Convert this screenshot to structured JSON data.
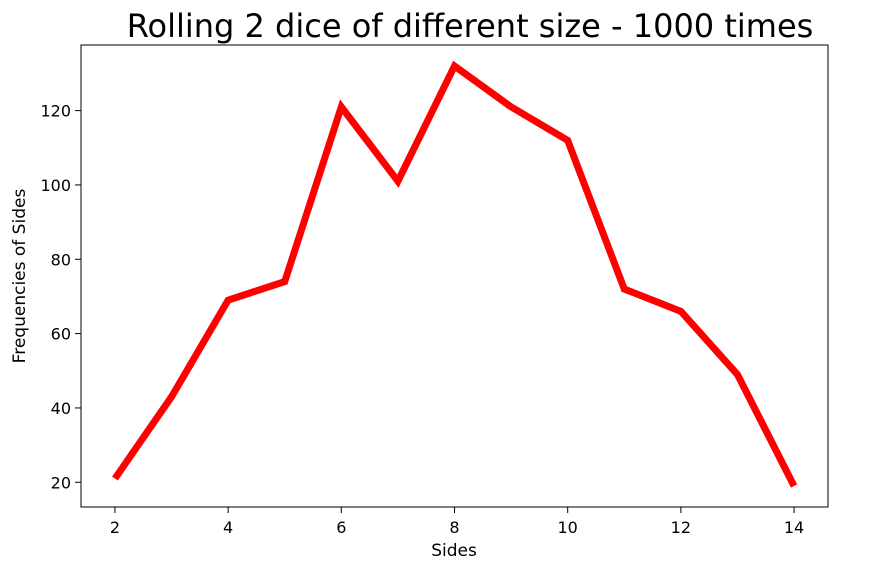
{
  "chart_data": {
    "type": "line",
    "title": "Rolling 2 dice of different size - 1000 times",
    "xlabel": "Sides",
    "ylabel": "Frequencies of Sides",
    "x": [
      2,
      3,
      4,
      5,
      6,
      7,
      8,
      9,
      10,
      11,
      12,
      13,
      14
    ],
    "series": [
      {
        "values": [
          21,
          43,
          69,
          74,
          121,
          101,
          132,
          121,
          112,
          72,
          66,
          49,
          19
        ]
      }
    ],
    "xlim": [
      1.4,
      14.6
    ],
    "ylim": [
      13.35,
      137.65
    ],
    "xticks": [
      2,
      4,
      6,
      8,
      10,
      12,
      14
    ],
    "yticks": [
      20,
      40,
      60,
      80,
      100,
      120
    ],
    "grid": false,
    "line_color": "#ff0000"
  }
}
